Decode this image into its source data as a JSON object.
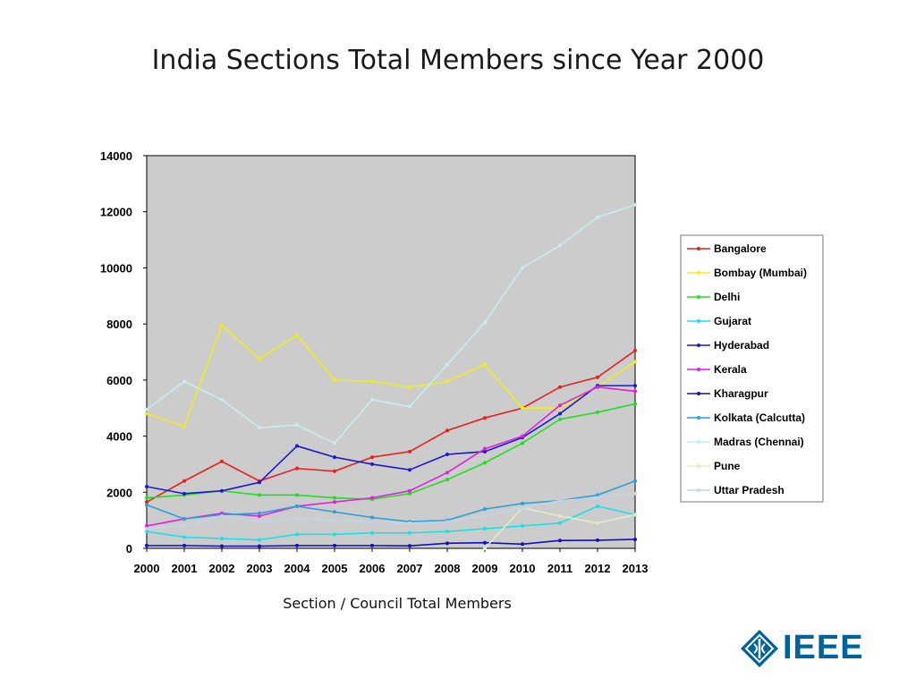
{
  "title": "India Sections Total Members since Year 2000",
  "caption": "Section / Council Total Members",
  "logo": {
    "text": "IEEE"
  },
  "chart_data": {
    "type": "line",
    "title": "",
    "xlabel": "",
    "ylabel": "",
    "x": [
      "2000",
      "2001",
      "2002",
      "2003",
      "2004",
      "2005",
      "2006",
      "2007",
      "2008",
      "2009",
      "2010",
      "2011",
      "2012",
      "2013"
    ],
    "ylim": [
      0,
      14000
    ],
    "yticks": [
      "0",
      "2000",
      "4000",
      "6000",
      "8000",
      "10000",
      "12000",
      "14000"
    ],
    "grid": false,
    "legend_position": "right",
    "plot_background": "#cccccc",
    "series": [
      {
        "name": "Bangalore",
        "color": "#e8201c",
        "values": [
          1650,
          2400,
          3100,
          2400,
          2850,
          2750,
          3250,
          3450,
          4200,
          4650,
          5000,
          5750,
          6100,
          7050
        ]
      },
      {
        "name": "Bombay (Mumbai)",
        "color": "#f0ee18",
        "values": [
          4800,
          4350,
          7950,
          6750,
          7600,
          6000,
          5950,
          5750,
          5950,
          6550,
          5000,
          5000,
          5750,
          6650
        ]
      },
      {
        "name": "Delhi",
        "color": "#22dd22",
        "values": [
          1800,
          1900,
          2050,
          1900,
          1900,
          1800,
          1750,
          1950,
          2450,
          3050,
          3750,
          4600,
          4850,
          5150
        ]
      },
      {
        "name": "Gujarat",
        "color": "#18e0e8",
        "values": [
          600,
          400,
          350,
          300,
          500,
          500,
          550,
          550,
          600,
          700,
          800,
          900,
          1500,
          1200
        ]
      },
      {
        "name": "Hyderabad",
        "color": "#1a1ad0",
        "values": [
          2200,
          1950,
          2050,
          2350,
          3650,
          3250,
          3000,
          2800,
          3350,
          3450,
          3950,
          4800,
          5800,
          5800
        ]
      },
      {
        "name": "Kerala",
        "color": "#e020e0",
        "values": [
          800,
          1050,
          1250,
          1150,
          1500,
          1650,
          1800,
          2050,
          2700,
          3550,
          4000,
          5100,
          5750,
          5600
        ]
      },
      {
        "name": "Kharagpur",
        "color": "#1010c0",
        "values": [
          100,
          100,
          80,
          80,
          100,
          100,
          100,
          90,
          180,
          200,
          150,
          280,
          290,
          320
        ]
      },
      {
        "name": "Kolkata (Calcutta)",
        "color": "#2aa0d8",
        "values": [
          1550,
          1050,
          1200,
          1250,
          1500,
          1300,
          1100,
          950,
          1000,
          1400,
          1600,
          1700,
          1900,
          2400
        ]
      },
      {
        "name": "Madras (Chennai)",
        "color": "#c8ecf0",
        "values": [
          4950,
          5950,
          5300,
          4300,
          4400,
          3750,
          5300,
          5050,
          6550,
          8050,
          10000,
          10800,
          11800,
          12250
        ]
      },
      {
        "name": "Pune",
        "color": "#e0eec0",
        "values": [
          null,
          null,
          null,
          null,
          null,
          null,
          null,
          null,
          null,
          0,
          1450,
          1150,
          900,
          1200
        ]
      },
      {
        "name": "Uttar Pradesh",
        "color": "#c4d4e4",
        "values": [
          700,
          800,
          1150,
          950,
          1050,
          1000,
          950,
          900,
          950,
          1150,
          1450,
          1700,
          1800,
          1950
        ]
      }
    ]
  }
}
